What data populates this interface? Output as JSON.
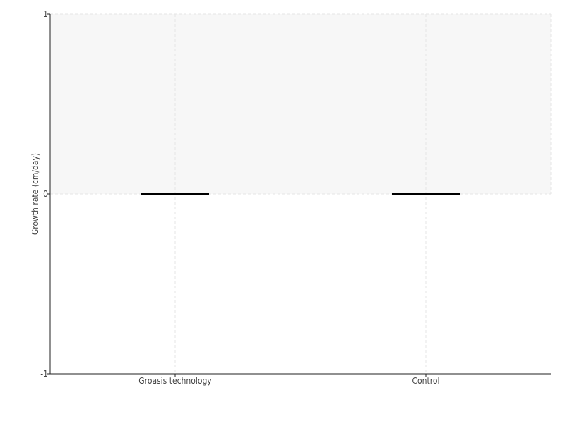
{
  "chart_data": {
    "type": "box",
    "categories": [
      "Groasis technology",
      "Control"
    ],
    "series": [
      {
        "values": [
          {
            "min": 0,
            "q1": 0,
            "median": 0,
            "q3": 0,
            "max": 0
          },
          {
            "min": 0,
            "q1": 0,
            "median": 0,
            "q3": 0,
            "max": 0
          }
        ]
      }
    ],
    "ylabel": "Growth rate (cm/day)",
    "xlabel": "",
    "ylim": [
      -1,
      1
    ],
    "yticks": [
      "1",
      "0",
      "-1"
    ],
    "minor_yticks": [
      0.5,
      -0.5
    ],
    "shaded_band": [
      0,
      1
    ],
    "grid": true,
    "colors": {
      "box": "#000000",
      "band": "#f7f7f7",
      "grid": "#e6e6e6",
      "minor_tick": "#e06060"
    }
  }
}
